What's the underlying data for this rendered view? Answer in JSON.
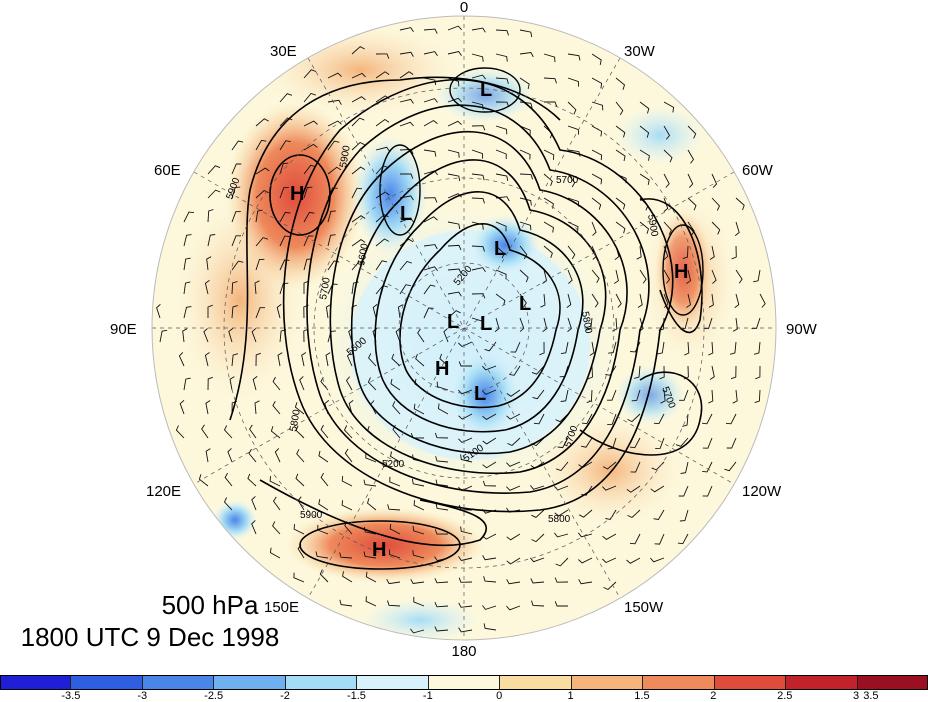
{
  "title": {
    "level": "500 hPa",
    "time": "1800 UTC 9 Dec 1998"
  },
  "longitude_labels": [
    {
      "name": "lon-0",
      "text": "0"
    },
    {
      "name": "lon-30w",
      "text": "30W"
    },
    {
      "name": "lon-60w",
      "text": "60W"
    },
    {
      "name": "lon-90w",
      "text": "90W"
    },
    {
      "name": "lon-120w",
      "text": "120W"
    },
    {
      "name": "lon-150w",
      "text": "150W"
    },
    {
      "name": "lon-180",
      "text": "180"
    },
    {
      "name": "lon-150e",
      "text": "150E"
    },
    {
      "name": "lon-120e",
      "text": "120E"
    },
    {
      "name": "lon-90e",
      "text": "90E"
    },
    {
      "name": "lon-60e",
      "text": "60E"
    },
    {
      "name": "lon-30e",
      "text": "30E"
    }
  ],
  "pressure_centers": [
    {
      "type": "H"
    },
    {
      "type": "H"
    },
    {
      "type": "H"
    },
    {
      "type": "H"
    },
    {
      "type": "L"
    },
    {
      "type": "L"
    },
    {
      "type": "L"
    },
    {
      "type": "L"
    },
    {
      "type": "L"
    },
    {
      "type": "L"
    },
    {
      "type": "L"
    }
  ],
  "contour_labels": [
    "5900",
    "5900",
    "5700",
    "5700",
    "5600",
    "5600",
    "5200",
    "5200",
    "5100",
    "5800",
    "5700",
    "5800",
    "5900",
    "5700",
    "5900",
    "5800"
  ],
  "colorbar": {
    "colors": [
      "#1f1fd6",
      "#2f5fe0",
      "#4a86e8",
      "#6fb0f0",
      "#a5dcf5",
      "#d8f2fb",
      "#fdf8dc",
      "#f8dca0",
      "#f4b47c",
      "#ee8a5c",
      "#e04c3c",
      "#c2222a",
      "#9b1020"
    ],
    "tick_labels": [
      "-3.5",
      "-3",
      "-2.5",
      "-2",
      "-1.5",
      "-1",
      "0",
      "1",
      "1.5",
      "2",
      "2.5",
      "3",
      "3.5"
    ]
  },
  "colors": {
    "background": "#ffffff",
    "map_disc_base": "#fdf8dc"
  }
}
